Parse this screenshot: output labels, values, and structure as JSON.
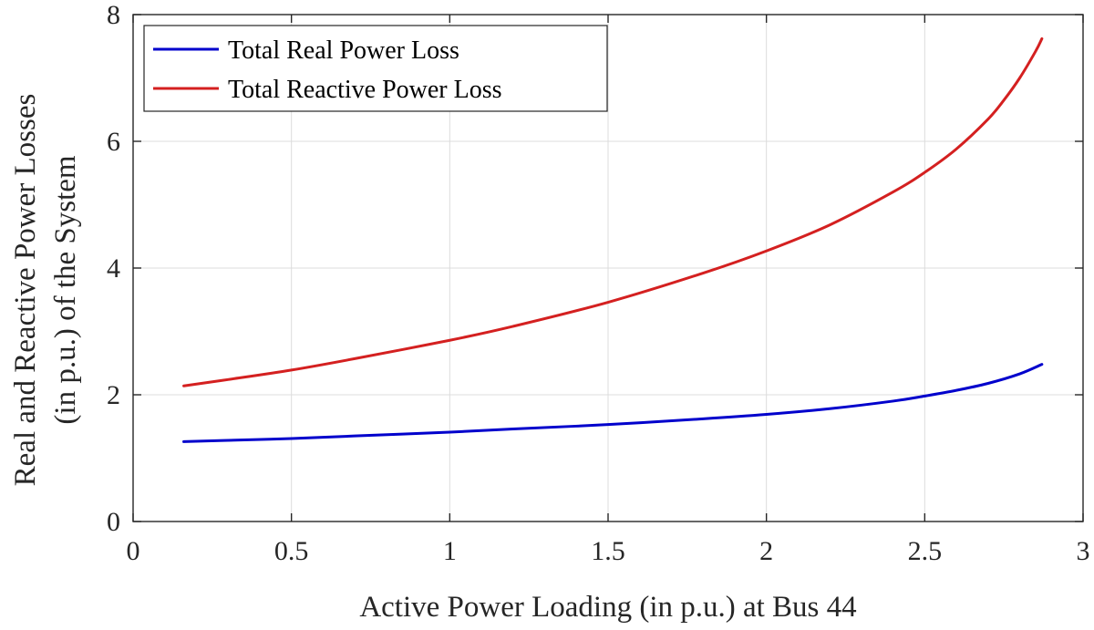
{
  "chart_data": {
    "type": "line",
    "xlabel": "Active Power Loading (in p.u.) at Bus 44",
    "ylabel_line1": "Real and Reactive Power Losses",
    "ylabel_line2": "(in p.u.) of the System",
    "xlim": [
      0,
      3
    ],
    "ylim": [
      0,
      8
    ],
    "xticks": [
      0,
      0.5,
      1,
      1.5,
      2,
      2.5,
      3
    ],
    "xtick_labels": [
      "0",
      "0.5",
      "1",
      "1.5",
      "2",
      "2.5",
      "3"
    ],
    "yticks": [
      0,
      2,
      4,
      6,
      8
    ],
    "ytick_labels": [
      "0",
      "2",
      "4",
      "6",
      "8"
    ],
    "grid": true,
    "legend_position": "top-left",
    "series": [
      {
        "name": "Total Real Power Loss",
        "color": "#0000cc",
        "x": [
          0.16,
          0.3,
          0.5,
          0.7,
          1.0,
          1.2,
          1.5,
          1.8,
          2.0,
          2.2,
          2.4,
          2.5,
          2.6,
          2.7,
          2.8,
          2.87
        ],
        "y": [
          1.26,
          1.28,
          1.31,
          1.35,
          1.41,
          1.46,
          1.53,
          1.62,
          1.69,
          1.78,
          1.9,
          1.98,
          2.07,
          2.18,
          2.33,
          2.48
        ]
      },
      {
        "name": "Total Reactive Power Loss",
        "color": "#d42020",
        "x": [
          0.16,
          0.3,
          0.5,
          0.7,
          1.0,
          1.2,
          1.5,
          1.8,
          2.0,
          2.2,
          2.4,
          2.5,
          2.6,
          2.7,
          2.75,
          2.8,
          2.85,
          2.87
        ],
        "y": [
          2.14,
          2.24,
          2.39,
          2.57,
          2.86,
          3.08,
          3.46,
          3.92,
          4.27,
          4.68,
          5.2,
          5.51,
          5.88,
          6.35,
          6.65,
          7.0,
          7.42,
          7.62
        ]
      }
    ]
  }
}
